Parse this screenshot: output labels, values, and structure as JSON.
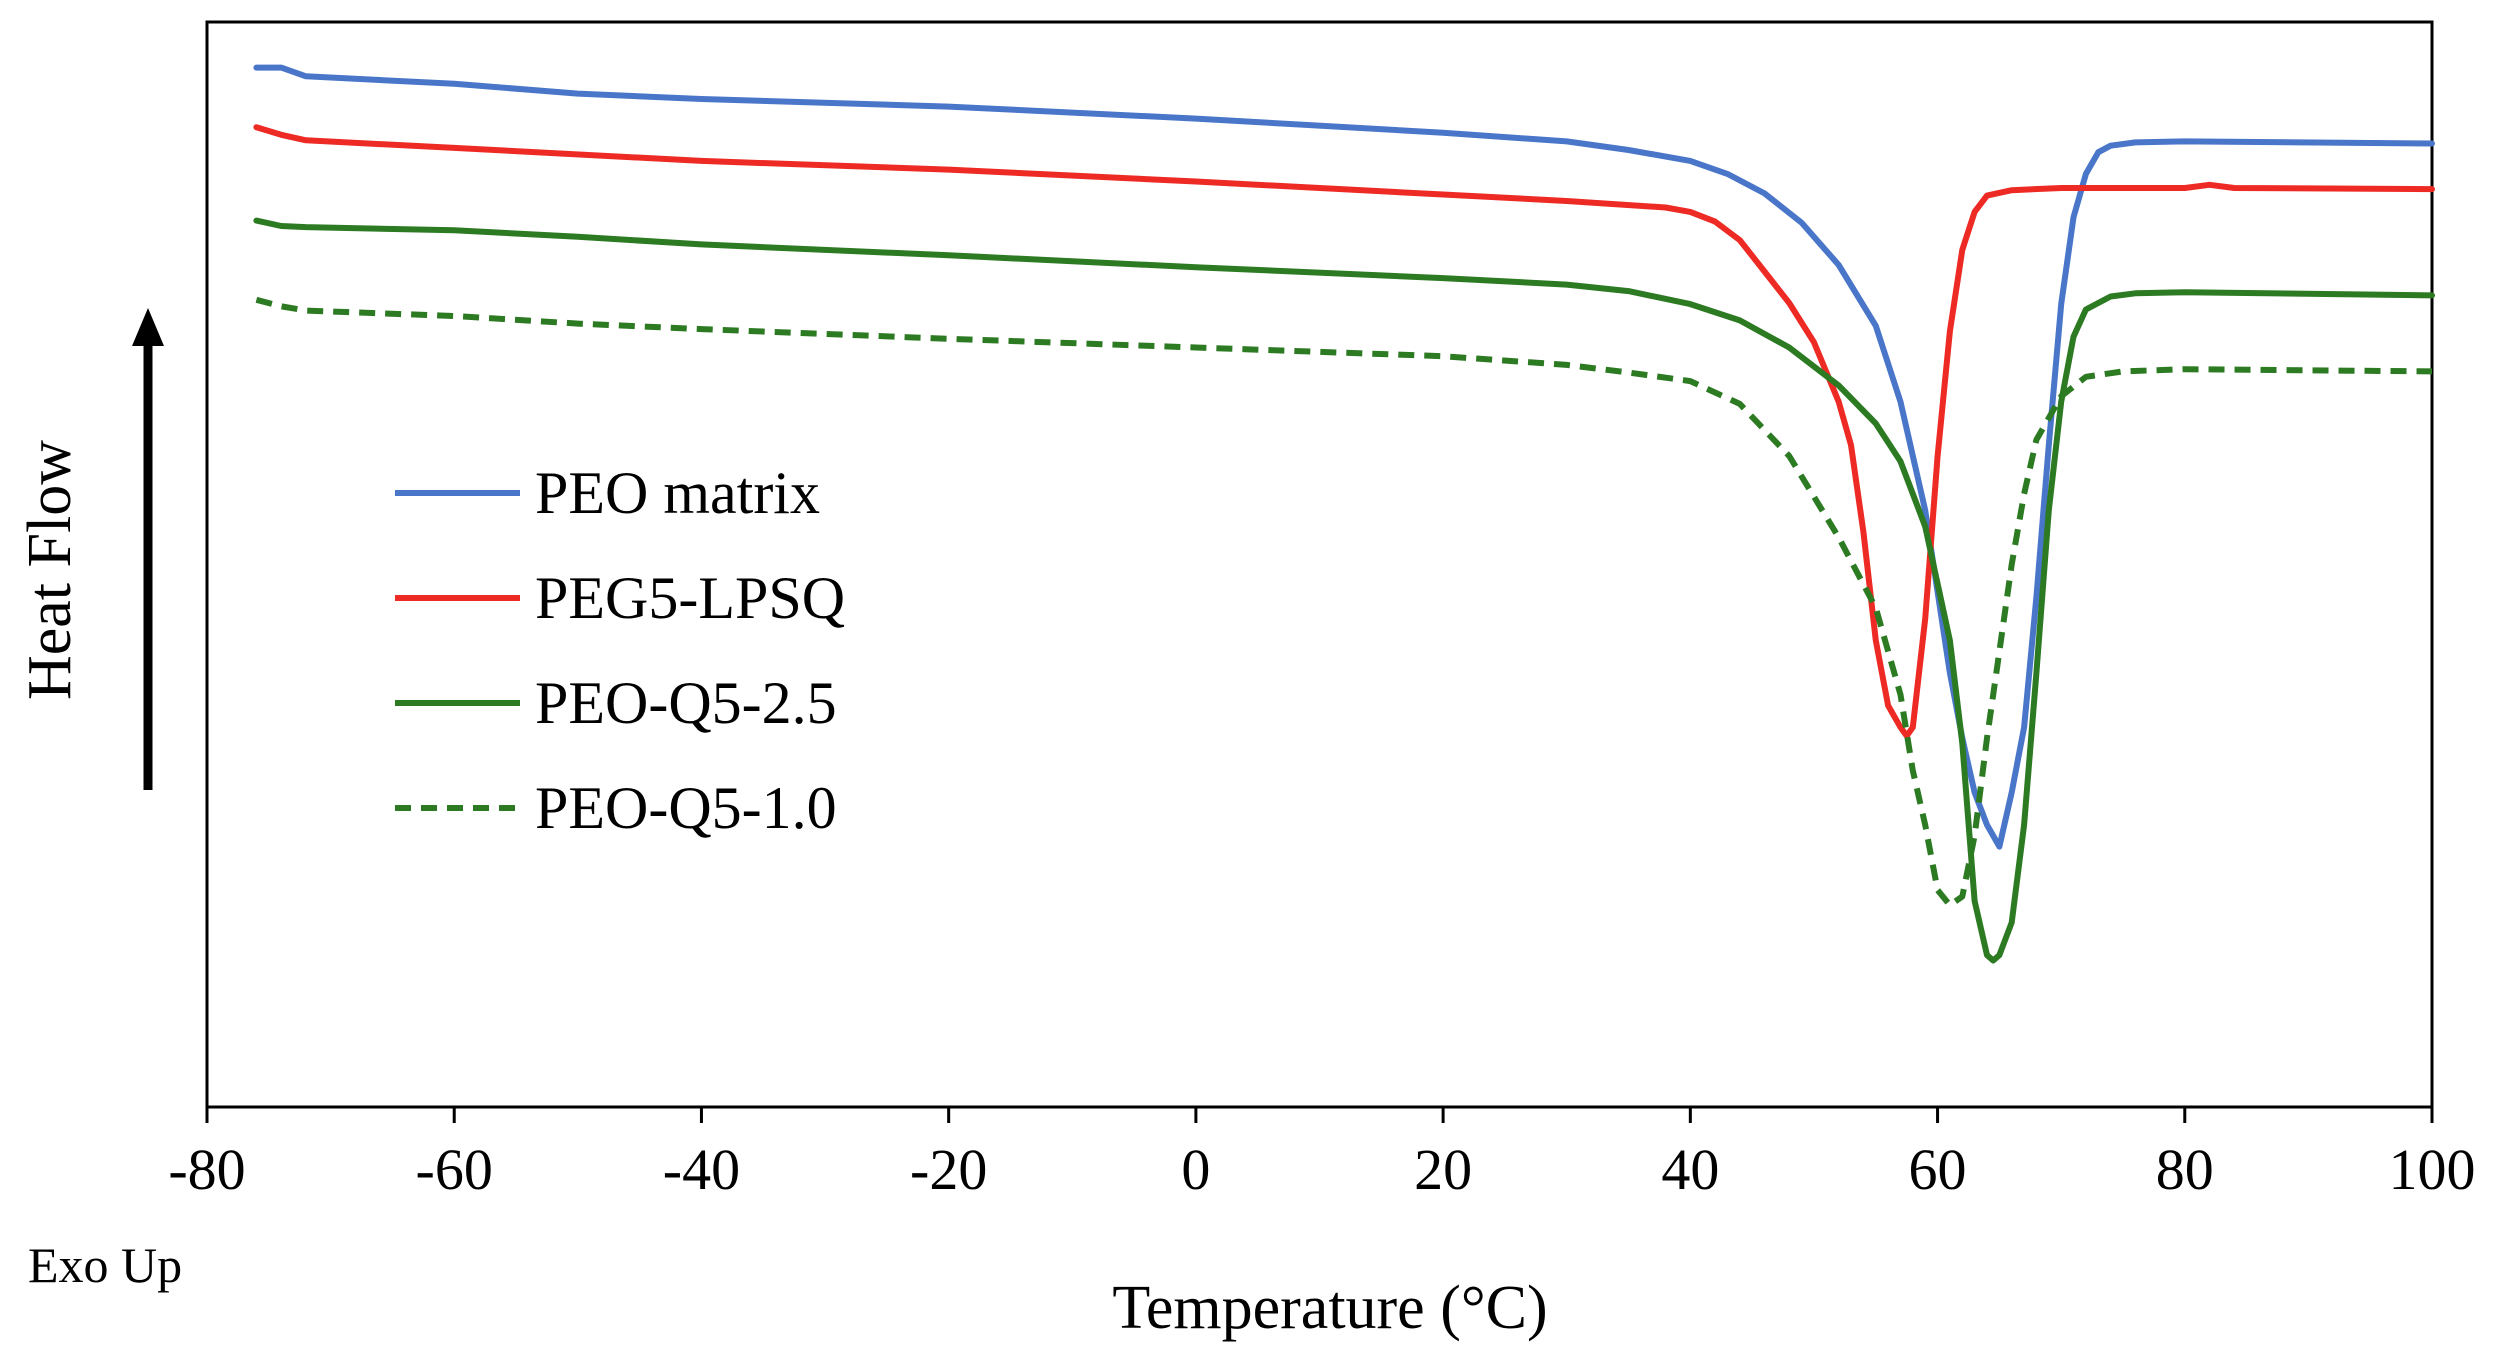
{
  "chart_data": {
    "type": "line",
    "title": "",
    "xlabel": "Temperature (°C)",
    "ylabel": "Heat Flow",
    "exo_note": "Exo Up",
    "xlim": [
      -80,
      100
    ],
    "ylim": [
      0,
      100
    ],
    "xticks": [
      -80,
      -60,
      -40,
      -20,
      0,
      20,
      40,
      60,
      80,
      100
    ],
    "xtick_labels": [
      "-80",
      "-60",
      "-40",
      "-20",
      "0",
      "20",
      "40",
      "60",
      "80",
      "100"
    ],
    "yticks_shown": false,
    "grid": false,
    "legend_position": "left-middle",
    "y_units": "arbitrary (curves offset vertically)",
    "series": [
      {
        "name": "PEO matrix",
        "color": "#4a76c9",
        "dash": "solid",
        "points": [
          [
            -76,
            95.8
          ],
          [
            -74,
            95.8
          ],
          [
            -72,
            95.0
          ],
          [
            -60,
            94.3
          ],
          [
            -50,
            93.4
          ],
          [
            -40,
            92.9
          ],
          [
            -20,
            92.2
          ],
          [
            0,
            91.1
          ],
          [
            20,
            89.8
          ],
          [
            30,
            89.0
          ],
          [
            35,
            88.2
          ],
          [
            40,
            87.2
          ],
          [
            43,
            86.0
          ],
          [
            46,
            84.2
          ],
          [
            49,
            81.5
          ],
          [
            52,
            77.6
          ],
          [
            55,
            72.0
          ],
          [
            57,
            65.0
          ],
          [
            59,
            55.0
          ],
          [
            61,
            40.0
          ],
          [
            62,
            34.0
          ],
          [
            63,
            29.0
          ],
          [
            64,
            26.0
          ],
          [
            65,
            24.0
          ],
          [
            66,
            29.0
          ],
          [
            67,
            35.0
          ],
          [
            68,
            47.0
          ],
          [
            69,
            61.0
          ],
          [
            70,
            74.0
          ],
          [
            71,
            82.0
          ],
          [
            72,
            86.0
          ],
          [
            73,
            88.0
          ],
          [
            74,
            88.6
          ],
          [
            76,
            88.9
          ],
          [
            80,
            89.0
          ],
          [
            100,
            88.8
          ]
        ]
      },
      {
        "name": "PEG5-LPSQ",
        "color": "#ee2a24",
        "dash": "solid",
        "points": [
          [
            -76,
            90.3
          ],
          [
            -74,
            89.6
          ],
          [
            -72,
            89.1
          ],
          [
            -60,
            88.4
          ],
          [
            -40,
            87.2
          ],
          [
            -20,
            86.4
          ],
          [
            0,
            85.3
          ],
          [
            20,
            84.1
          ],
          [
            30,
            83.5
          ],
          [
            38,
            82.9
          ],
          [
            40,
            82.5
          ],
          [
            42,
            81.6
          ],
          [
            44,
            79.9
          ],
          [
            46,
            77.0
          ],
          [
            48,
            74.1
          ],
          [
            50,
            70.5
          ],
          [
            52,
            65.0
          ],
          [
            53,
            61.0
          ],
          [
            54,
            53.0
          ],
          [
            55,
            43.0
          ],
          [
            56,
            37.0
          ],
          [
            57,
            35.0
          ],
          [
            57.5,
            34.2
          ],
          [
            58,
            35.0
          ],
          [
            59,
            45.0
          ],
          [
            60,
            60.0
          ],
          [
            61,
            71.5
          ],
          [
            62,
            79.0
          ],
          [
            63,
            82.5
          ],
          [
            64,
            84.0
          ],
          [
            66,
            84.5
          ],
          [
            70,
            84.7
          ],
          [
            80,
            84.7
          ],
          [
            82,
            85.0
          ],
          [
            84,
            84.7
          ],
          [
            100,
            84.6
          ]
        ]
      },
      {
        "name": "PEO-Q5-2.5",
        "color": "#2c7a22",
        "dash": "solid",
        "points": [
          [
            -76,
            81.7
          ],
          [
            -74,
            81.2
          ],
          [
            -72,
            81.1
          ],
          [
            -60,
            80.8
          ],
          [
            -50,
            80.2
          ],
          [
            -40,
            79.5
          ],
          [
            -20,
            78.5
          ],
          [
            0,
            77.4
          ],
          [
            20,
            76.4
          ],
          [
            30,
            75.8
          ],
          [
            35,
            75.2
          ],
          [
            40,
            74.0
          ],
          [
            44,
            72.5
          ],
          [
            48,
            70.0
          ],
          [
            52,
            66.5
          ],
          [
            55,
            63.0
          ],
          [
            57,
            59.5
          ],
          [
            59,
            53.5
          ],
          [
            61,
            43.0
          ],
          [
            62,
            33.5
          ],
          [
            63,
            19.0
          ],
          [
            64,
            14.0
          ],
          [
            64.5,
            13.5
          ],
          [
            65,
            14.0
          ],
          [
            66,
            17.0
          ],
          [
            67,
            26.0
          ],
          [
            68,
            40.0
          ],
          [
            69,
            55.0
          ],
          [
            70,
            65.0
          ],
          [
            71,
            71.0
          ],
          [
            72,
            73.5
          ],
          [
            74,
            74.7
          ],
          [
            76,
            75.0
          ],
          [
            80,
            75.1
          ],
          [
            100,
            74.8
          ]
        ]
      },
      {
        "name": "PEO-Q5-1.0",
        "color": "#2c7a22",
        "dash": "dashed",
        "points": [
          [
            -76,
            74.4
          ],
          [
            -74,
            73.8
          ],
          [
            -72,
            73.4
          ],
          [
            -60,
            72.9
          ],
          [
            -50,
            72.2
          ],
          [
            -40,
            71.7
          ],
          [
            -20,
            70.8
          ],
          [
            0,
            70.0
          ],
          [
            20,
            69.2
          ],
          [
            30,
            68.4
          ],
          [
            35,
            67.7
          ],
          [
            40,
            66.9
          ],
          [
            44,
            64.8
          ],
          [
            48,
            60.0
          ],
          [
            52,
            52.5
          ],
          [
            55,
            46.0
          ],
          [
            57,
            38.0
          ],
          [
            58,
            31.0
          ],
          [
            59,
            26.0
          ],
          [
            60,
            20.0
          ],
          [
            61,
            18.6
          ],
          [
            62,
            19.4
          ],
          [
            63,
            25.0
          ],
          [
            64,
            34.0
          ],
          [
            65,
            42.0
          ],
          [
            66,
            50.0
          ],
          [
            67,
            56.5
          ],
          [
            68,
            61.5
          ],
          [
            70,
            65.5
          ],
          [
            72,
            67.3
          ],
          [
            75,
            67.8
          ],
          [
            80,
            68.0
          ],
          [
            100,
            67.8
          ]
        ]
      }
    ]
  }
}
